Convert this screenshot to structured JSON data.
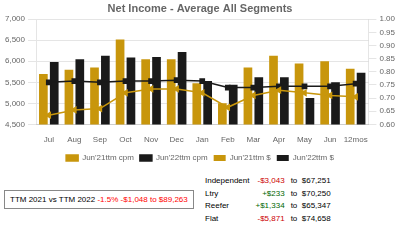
{
  "chart_data": {
    "type": "bar",
    "title": "Net Income - Average All Segments",
    "categories": [
      "Jul",
      "Aug",
      "Sep",
      "Oct",
      "Nov",
      "Dec",
      "Jan",
      "Feb",
      "Mar",
      "Apr",
      "May",
      "Jun",
      "12mos"
    ],
    "series": [
      {
        "name": "Jun'21ttm $",
        "type": "bar",
        "color": "#C8960C",
        "values": [
          5700,
          5800,
          5850,
          6520,
          6050,
          6050,
          5480,
          5000,
          5850,
          6130,
          5950,
          6000,
          5820
        ]
      },
      {
        "name": "Jun'22ttm $",
        "type": "bar",
        "color": "#1a1a1a",
        "values": [
          5980,
          6050,
          6130,
          6090,
          6100,
          6220,
          5530,
          5440,
          5620,
          5620,
          5130,
          5500,
          5730
        ]
      },
      {
        "name": "Jun'21ttm cpm",
        "type": "line",
        "axis": "y2",
        "color": "#C8960C",
        "marker": "triangle",
        "values": [
          0.635,
          0.655,
          0.66,
          0.72,
          0.735,
          0.735,
          0.72,
          0.665,
          0.71,
          0.73,
          0.72,
          0.71,
          0.705
        ]
      },
      {
        "name": "Jun'22ttm cpm",
        "type": "line",
        "axis": "y2",
        "color": "#1a1a1a",
        "marker": "square",
        "values": [
          0.76,
          0.765,
          0.76,
          0.765,
          0.765,
          0.768,
          0.765,
          0.74,
          0.74,
          0.745,
          0.745,
          0.745,
          0.755
        ]
      }
    ],
    "ylim": [
      4500,
      7000
    ],
    "yticks": [
      {
        "value": 4500,
        "label": "4,500"
      },
      {
        "value": 5000,
        "label": "5,000"
      },
      {
        "value": 5500,
        "label": "5,500"
      },
      {
        "value": 6000,
        "label": "6,000"
      },
      {
        "value": 6500,
        "label": "6,500"
      },
      {
        "value": 7000,
        "label": "7,000"
      }
    ],
    "y2lim": [
      0.6,
      1.0
    ],
    "y2ticks": [
      {
        "value": 0.6,
        "label": "0.60"
      },
      {
        "value": 0.65,
        "label": "0.65"
      },
      {
        "value": 0.7,
        "label": "0.70"
      },
      {
        "value": 0.75,
        "label": "0.75"
      },
      {
        "value": 0.8,
        "label": "0.80"
      },
      {
        "value": 0.85,
        "label": "0.85"
      },
      {
        "value": 0.9,
        "label": "0.90"
      },
      {
        "value": 0.95,
        "label": "0.95"
      },
      {
        "value": 1.0,
        "label": "1.00"
      }
    ],
    "grid": true,
    "legend": "bottom",
    "annotations": [
      [
        {
          "text": "TTM 2021 vs TTM 2022"
        },
        {
          "text": "-1.5%",
          "color": "red"
        },
        {
          "text": "-$1,048 to $89,263",
          "color": "red"
        }
      ],
      [
        {
          "text": "Independent"
        },
        {
          "text": "-$3,043",
          "color": "#cc0000"
        },
        {
          "text": "to  $67,251"
        }
      ],
      [
        {
          "text": "Ltry"
        },
        {
          "text": "+$233",
          "color": "#006600"
        },
        {
          "text": "to  $70,250"
        }
      ],
      [
        {
          "text": "Reefer"
        },
        {
          "text": "+$1,334",
          "color": "#006600"
        },
        {
          "text": "to  $65,347"
        }
      ],
      [
        {
          "text": "Flat"
        },
        {
          "text": "-$5,871",
          "color": "#cc0000"
        },
        {
          "text": "to  $74,658"
        }
      ]
    ]
  }
}
